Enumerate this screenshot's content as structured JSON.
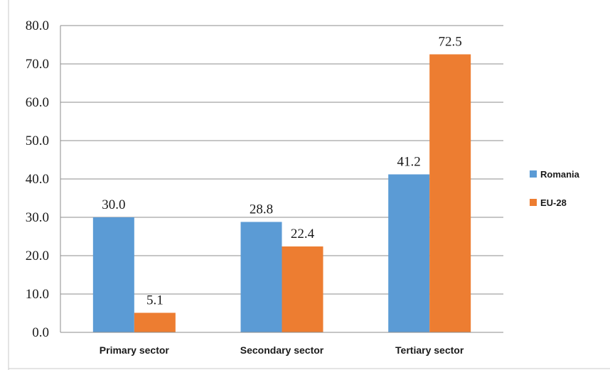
{
  "chart_data": {
    "type": "bar",
    "title": "",
    "xlabel": "",
    "ylabel": "",
    "categories": [
      "Primary sector",
      "Secondary sector",
      "Tertiary sector"
    ],
    "series": [
      {
        "name": "Romania",
        "values": [
          30.0,
          28.8,
          41.2
        ],
        "value_labels": [
          "30.0",
          "28.8",
          "41.2"
        ],
        "color": "#5B9BD5"
      },
      {
        "name": "EU-28",
        "values": [
          5.1,
          22.4,
          72.5
        ],
        "value_labels": [
          "5.1",
          "22.4",
          "72.5"
        ],
        "color": "#ED7D31"
      }
    ],
    "ylim": [
      0,
      80
    ],
    "y_ticks": [
      "0.0",
      "10.0",
      "20.0",
      "30.0",
      "40.0",
      "50.0",
      "60.0",
      "70.0",
      "80.0"
    ],
    "grid": true,
    "legend_position": "right"
  }
}
